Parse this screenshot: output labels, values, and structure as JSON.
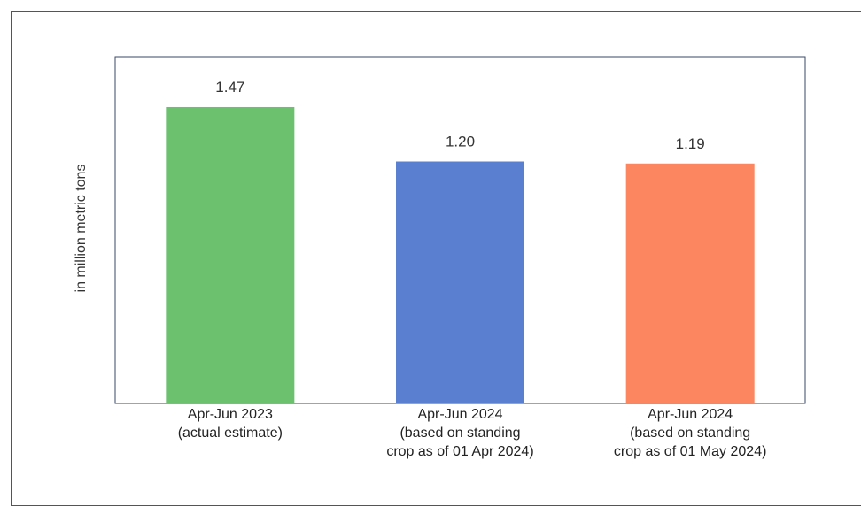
{
  "chart_data": {
    "type": "bar",
    "categories": [
      [
        "Apr-Jun 2023",
        "(actual estimate)"
      ],
      [
        "Apr-Jun 2024",
        "(based on standing",
        "crop as of 01 Apr 2024)"
      ],
      [
        "Apr-Jun 2024",
        "(based on standing",
        "crop as of 01 May 2024)"
      ]
    ],
    "values": [
      1.47,
      1.2,
      1.19
    ],
    "value_labels": [
      "1.47",
      "1.20",
      "1.19"
    ],
    "colors": [
      "#6cc16f",
      "#5a7fd0",
      "#fb8660"
    ],
    "title": "",
    "xlabel": "",
    "ylabel": "in million metric tons",
    "ylim": [
      0,
      1.72
    ],
    "grid": false,
    "legend": "none"
  }
}
